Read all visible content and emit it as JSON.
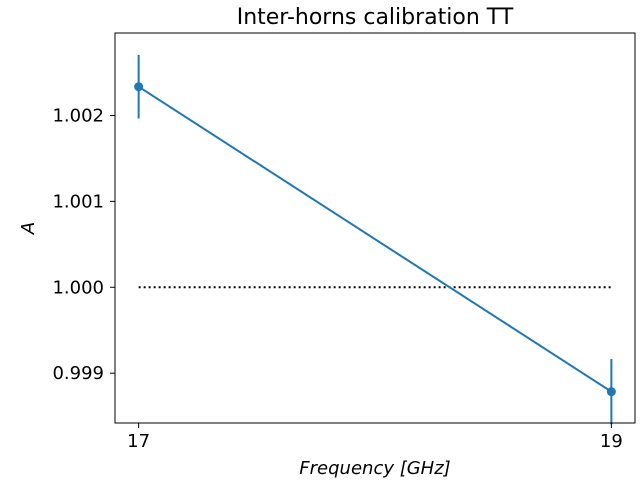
{
  "chart_data": {
    "type": "line",
    "title": "Inter-horns calibration TT",
    "xlabel": "Frequency [GHz]",
    "ylabel": "A",
    "x": [
      17,
      19
    ],
    "x_tick_labels": [
      "17",
      "19"
    ],
    "y_tick_labels": [
      "0.999",
      "1.000",
      "1.001",
      "1.002"
    ],
    "y_ticks": [
      0.999,
      1.0,
      1.001,
      1.002
    ],
    "xlim": [
      16.9,
      19.1
    ],
    "ylim": [
      0.99842,
      1.00296
    ],
    "grid": false,
    "series": [
      {
        "values": [
          1.002335,
          0.998785
        ],
        "errors": [
          0.00037,
          0.00038
        ],
        "color": "#1f77b4",
        "marker": "circle"
      }
    ],
    "reference_line": {
      "y": 1.0,
      "x_range": [
        17,
        19
      ],
      "style": "dotted",
      "color": "#000000"
    }
  }
}
